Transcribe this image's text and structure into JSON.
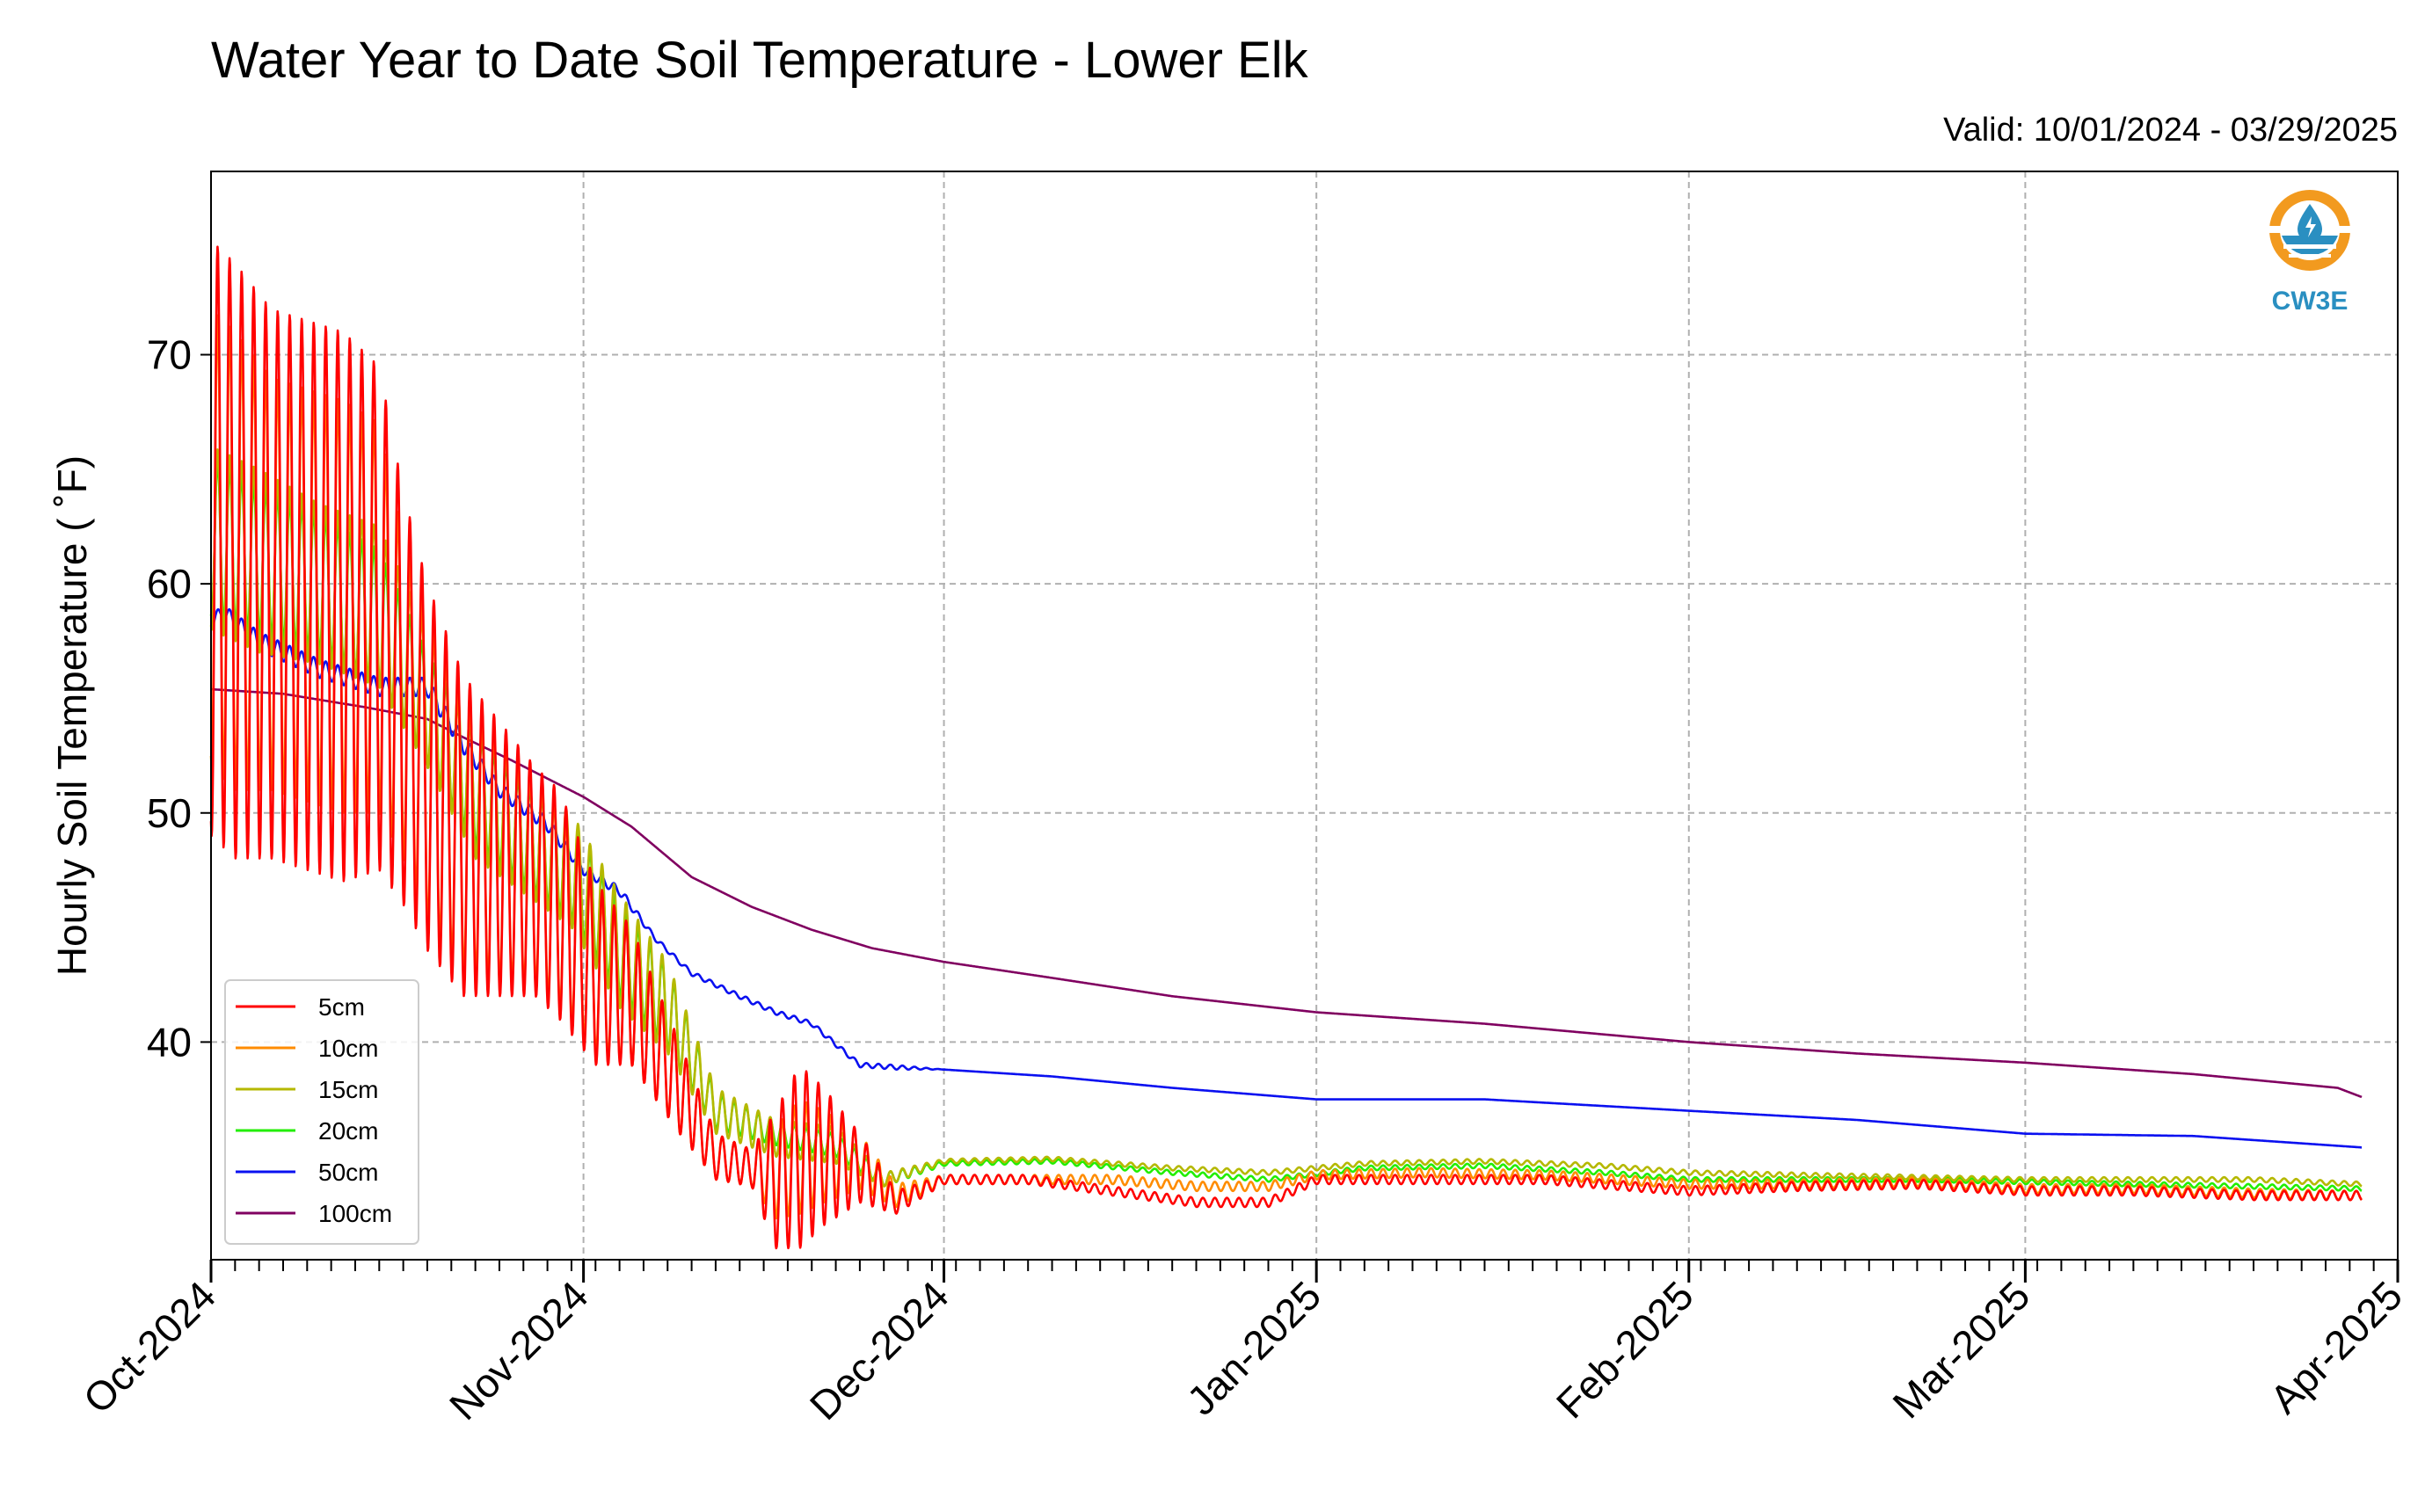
{
  "title": "Water Year to Date Soil Temperature - Lower Elk",
  "subtitle": "Valid: 10/01/2024 - 03/29/2025",
  "logo": {
    "text": "CW3E",
    "icon": "water-drop-sun-icon",
    "color": "#2a8fc1",
    "accent": "#f29a1f"
  },
  "chart_data": {
    "type": "line",
    "ylabel": "Hourly Soil Temperature ( ˚F)",
    "ylim": [
      30.5,
      78
    ],
    "yticks": [
      40,
      50,
      60,
      70
    ],
    "xlim": [
      "2024-10-01",
      "2025-04-01"
    ],
    "xticks": [
      {
        "date": "2024-10-01",
        "label": "Oct-2024"
      },
      {
        "date": "2024-11-01",
        "label": "Nov-2024"
      },
      {
        "date": "2024-12-01",
        "label": "Dec-2024"
      },
      {
        "date": "2025-01-01",
        "label": "Jan-2025"
      },
      {
        "date": "2025-02-01",
        "label": "Feb-2025"
      },
      {
        "date": "2025-03-01",
        "label": "Mar-2025"
      },
      {
        "date": "2025-04-01",
        "label": "Apr-2025"
      }
    ],
    "grid": true,
    "legend_position": "lower-left",
    "series": [
      {
        "name": "5cm",
        "color": "#ff0000",
        "dates": [
          "2024-10-01",
          "2024-10-03",
          "2024-10-06",
          "2024-10-09",
          "2024-10-12",
          "2024-10-15",
          "2024-10-17",
          "2024-10-19",
          "2024-10-22",
          "2024-10-25",
          "2024-10-28",
          "2024-10-30",
          "2024-11-02",
          "2024-11-05",
          "2024-11-09",
          "2024-11-12",
          "2024-11-15",
          "2024-11-17",
          "2024-11-19",
          "2024-11-21",
          "2024-11-24",
          "2024-11-27",
          "2024-12-01",
          "2024-12-08",
          "2024-12-15",
          "2024-12-22",
          "2024-12-28",
          "2025-01-01",
          "2025-01-10",
          "2025-01-20",
          "2025-02-01",
          "2025-02-10",
          "2025-02-20",
          "2025-03-01",
          "2025-03-10",
          "2025-03-20",
          "2025-03-29"
        ],
        "mean": [
          62,
          61,
          60,
          59.5,
          59,
          58.5,
          55,
          52,
          49,
          48,
          47,
          46,
          43,
          42,
          38,
          35,
          34.5,
          34,
          35,
          35,
          34.5,
          33,
          34,
          34,
          33.5,
          33,
          33,
          34,
          34,
          34,
          33.5,
          33.7,
          33.8,
          33.5,
          33.5,
          33.3,
          33.3
        ],
        "amp": [
          13,
          13,
          12,
          12,
          12,
          11,
          9,
          8,
          7,
          6,
          5,
          5,
          4,
          3,
          2,
          1,
          0.8,
          3,
          4,
          3,
          1.5,
          0.5,
          0.2,
          0.2,
          0.2,
          0.2,
          0.2,
          0.2,
          0.2,
          0.2,
          0.2,
          0.2,
          0.2,
          0.2,
          0.2,
          0.2,
          0.2
        ]
      },
      {
        "name": "10cm",
        "color": "#ff8c00",
        "dates": [
          "2024-10-01",
          "2024-10-03",
          "2024-10-06",
          "2024-10-09",
          "2024-10-12",
          "2024-10-15",
          "2024-10-17",
          "2024-10-19",
          "2024-10-22",
          "2024-10-25",
          "2024-10-28",
          "2024-10-30",
          "2024-11-02",
          "2024-11-05",
          "2024-11-09",
          "2024-11-12",
          "2024-11-15",
          "2024-11-17",
          "2024-11-19",
          "2024-11-21",
          "2024-11-24",
          "2024-11-27",
          "2024-12-01",
          "2024-12-08",
          "2024-12-15",
          "2024-12-22",
          "2024-12-28",
          "2025-01-01",
          "2025-01-10",
          "2025-01-20",
          "2025-02-01",
          "2025-02-10",
          "2025-02-20",
          "2025-03-01",
          "2025-03-10",
          "2025-03-20",
          "2025-03-29"
        ],
        "mean": [
          62,
          61,
          60,
          59.5,
          59,
          58.5,
          55,
          52,
          49,
          48,
          47,
          46,
          43,
          42,
          38,
          35,
          34.5,
          34.3,
          35,
          35,
          34.8,
          33.3,
          34,
          34,
          34,
          33.7,
          33.7,
          34.2,
          34.3,
          34.2,
          33.8,
          33.8,
          33.9,
          33.6,
          33.6,
          33.4,
          33.3
        ],
        "amp": [
          10,
          10,
          9,
          9,
          9,
          8.5,
          7,
          7,
          6,
          5.5,
          4.5,
          4.5,
          3.5,
          3,
          2,
          1,
          0.8,
          2,
          2.5,
          2,
          1.2,
          0.5,
          0.2,
          0.2,
          0.2,
          0.2,
          0.2,
          0.2,
          0.2,
          0.2,
          0.2,
          0.2,
          0.2,
          0.2,
          0.2,
          0.2,
          0.2
        ]
      },
      {
        "name": "15cm",
        "color": "#b5b800",
        "dates": [
          "2024-10-01",
          "2024-10-05",
          "2024-10-10",
          "2024-10-15",
          "2024-10-19",
          "2024-10-23",
          "2024-10-27",
          "2024-10-31",
          "2024-11-04",
          "2024-11-08",
          "2024-11-12",
          "2024-11-17",
          "2024-11-22",
          "2024-11-26",
          "2024-12-01",
          "2024-12-10",
          "2024-12-20",
          "2024-12-28",
          "2025-01-05",
          "2025-01-15",
          "2025-01-25",
          "2025-02-01",
          "2025-02-10",
          "2025-02-20",
          "2025-03-01",
          "2025-03-10",
          "2025-03-20",
          "2025-03-29"
        ],
        "mean": [
          62,
          61,
          60,
          59,
          55,
          51,
          49,
          47.5,
          44,
          41.5,
          37,
          35.8,
          35.5,
          34,
          34.8,
          34.9,
          34.5,
          34.3,
          34.7,
          34.8,
          34.6,
          34.3,
          34.2,
          34.1,
          34,
          34,
          34,
          33.8
        ],
        "amp": [
          4,
          4,
          3.5,
          3.5,
          3,
          3,
          2.5,
          2.5,
          2.5,
          2,
          1,
          0.8,
          0.8,
          0.3,
          0.1,
          0.1,
          0.1,
          0.1,
          0.1,
          0.1,
          0.1,
          0.1,
          0.1,
          0.1,
          0.1,
          0.1,
          0.1,
          0.1
        ]
      },
      {
        "name": "20cm",
        "color": "#22ee00",
        "dates": [
          "2024-10-01",
          "2024-10-05",
          "2024-10-10",
          "2024-10-15",
          "2024-10-19",
          "2024-10-23",
          "2024-10-27",
          "2024-10-31",
          "2024-11-04",
          "2024-11-08",
          "2024-11-12",
          "2024-11-17",
          "2024-11-22",
          "2024-11-26",
          "2024-12-01",
          "2024-12-10",
          "2024-12-20",
          "2024-12-28",
          "2025-01-05",
          "2025-01-15",
          "2025-01-25",
          "2025-02-01",
          "2025-02-10",
          "2025-02-20",
          "2025-03-01",
          "2025-03-10",
          "2025-03-20",
          "2025-03-29"
        ],
        "mean": [
          62,
          61,
          60,
          58.5,
          54.5,
          51,
          49,
          47.5,
          44,
          41.5,
          37,
          36,
          35.5,
          34,
          34.7,
          34.8,
          34.3,
          34,
          34.5,
          34.6,
          34.3,
          34,
          34,
          34,
          33.9,
          33.8,
          33.7,
          33.6
        ],
        "amp": [
          3.5,
          3.2,
          3,
          3,
          2.5,
          2.5,
          2.2,
          2.2,
          2,
          1.8,
          0.8,
          0.5,
          0.5,
          0.3,
          0.1,
          0.1,
          0.1,
          0.1,
          0.1,
          0.1,
          0.1,
          0.1,
          0.1,
          0.1,
          0.1,
          0.1,
          0.1,
          0.1
        ]
      },
      {
        "name": "50cm",
        "color": "#0a10f0",
        "dates": [
          "2024-10-01",
          "2024-10-02",
          "2024-10-05",
          "2024-10-10",
          "2024-10-15",
          "2024-10-19",
          "2024-10-22",
          "2024-10-25",
          "2024-10-29",
          "2024-11-01",
          "2024-11-04",
          "2024-11-07",
          "2024-11-10",
          "2024-11-14",
          "2024-11-17",
          "2024-11-20",
          "2024-11-24",
          "2024-11-27",
          "2024-12-01",
          "2024-12-10",
          "2024-12-20",
          "2025-01-01",
          "2025-01-15",
          "2025-02-01",
          "2025-02-15",
          "2025-03-01",
          "2025-03-15",
          "2025-03-29"
        ],
        "mean": [
          58.3,
          58.8,
          57.5,
          56.3,
          55.5,
          55.5,
          53,
          51,
          49.5,
          47.5,
          46.6,
          44.5,
          43,
          42,
          41.3,
          40.8,
          39,
          38.9,
          38.8,
          38.5,
          38,
          37.5,
          37.5,
          37,
          36.6,
          36,
          35.9,
          35.4
        ],
        "amp": [
          0.3,
          0.3,
          0.4,
          0.4,
          0.4,
          0.4,
          0.4,
          0.3,
          0.3,
          0.2,
          0.2,
          0.1,
          0.1,
          0.1,
          0.1,
          0.1,
          0.1,
          0.1,
          0,
          0,
          0,
          0,
          0,
          0,
          0,
          0,
          0,
          0
        ]
      },
      {
        "name": "100cm",
        "color": "#800060",
        "dates": [
          "2024-10-01",
          "2024-10-07",
          "2024-10-14",
          "2024-10-19",
          "2024-10-22",
          "2024-10-26",
          "2024-11-01",
          "2024-11-05",
          "2024-11-10",
          "2024-11-15",
          "2024-11-20",
          "2024-11-25",
          "2024-12-01",
          "2024-12-10",
          "2024-12-20",
          "2025-01-01",
          "2025-01-15",
          "2025-02-01",
          "2025-02-15",
          "2025-03-01",
          "2025-03-15",
          "2025-03-27",
          "2025-03-29"
        ],
        "mean": [
          55.4,
          55.2,
          54.6,
          54.1,
          53.3,
          52.3,
          50.7,
          49.4,
          47.2,
          45.9,
          44.9,
          44.1,
          43.5,
          42.8,
          42,
          41.3,
          40.8,
          40,
          39.5,
          39.1,
          38.6,
          38,
          37.6
        ],
        "amp": [
          0,
          0,
          0,
          0,
          0,
          0,
          0,
          0,
          0,
          0,
          0,
          0,
          0,
          0,
          0,
          0,
          0,
          0,
          0,
          0,
          0,
          0,
          0
        ]
      }
    ]
  }
}
